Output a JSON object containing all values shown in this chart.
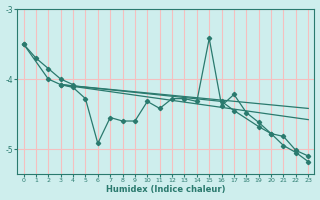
{
  "xlabel": "Humidex (Indice chaleur)",
  "background_color": "#ceeeed",
  "grid_color": "#f5bfbf",
  "line_color": "#2a7a6e",
  "xlim": [
    -0.5,
    23.5
  ],
  "ylim": [
    -5.35,
    -3.25
  ],
  "yticks": [
    -5,
    -4,
    -3
  ],
  "xticks": [
    0,
    1,
    2,
    3,
    4,
    5,
    6,
    7,
    8,
    9,
    10,
    11,
    12,
    13,
    14,
    15,
    16,
    17,
    18,
    19,
    20,
    21,
    22,
    23
  ],
  "lines": [
    {
      "x": [
        0,
        1,
        2,
        3,
        4
      ],
      "y": [
        -3.5,
        -3.7,
        -3.85,
        -4.0,
        -4.08
      ]
    },
    {
      "x": [
        0,
        2,
        3,
        4,
        5,
        6,
        7,
        8,
        9,
        10,
        11,
        12,
        13,
        14,
        15,
        16,
        17,
        18,
        19,
        20,
        21,
        22,
        23
      ],
      "y": [
        -3.5,
        -4.0,
        -4.08,
        -4.12,
        -4.28,
        -4.92,
        -4.55,
        -4.6,
        -4.6,
        -4.32,
        -4.42,
        -4.28,
        -4.28,
        -4.32,
        -3.42,
        -4.38,
        -4.22,
        -4.48,
        -4.62,
        -4.78,
        -4.82,
        -5.02,
        -5.1
      ]
    },
    {
      "x": [
        3,
        23
      ],
      "y": [
        -4.08,
        -4.42
      ]
    },
    {
      "x": [
        3,
        23
      ],
      "y": [
        -4.08,
        -4.58
      ]
    },
    {
      "x": [
        3,
        16,
        17,
        19,
        20,
        21,
        22,
        23
      ],
      "y": [
        -4.08,
        -4.32,
        -4.45,
        -4.68,
        -4.78,
        -4.95,
        -5.05,
        -5.18
      ]
    }
  ]
}
